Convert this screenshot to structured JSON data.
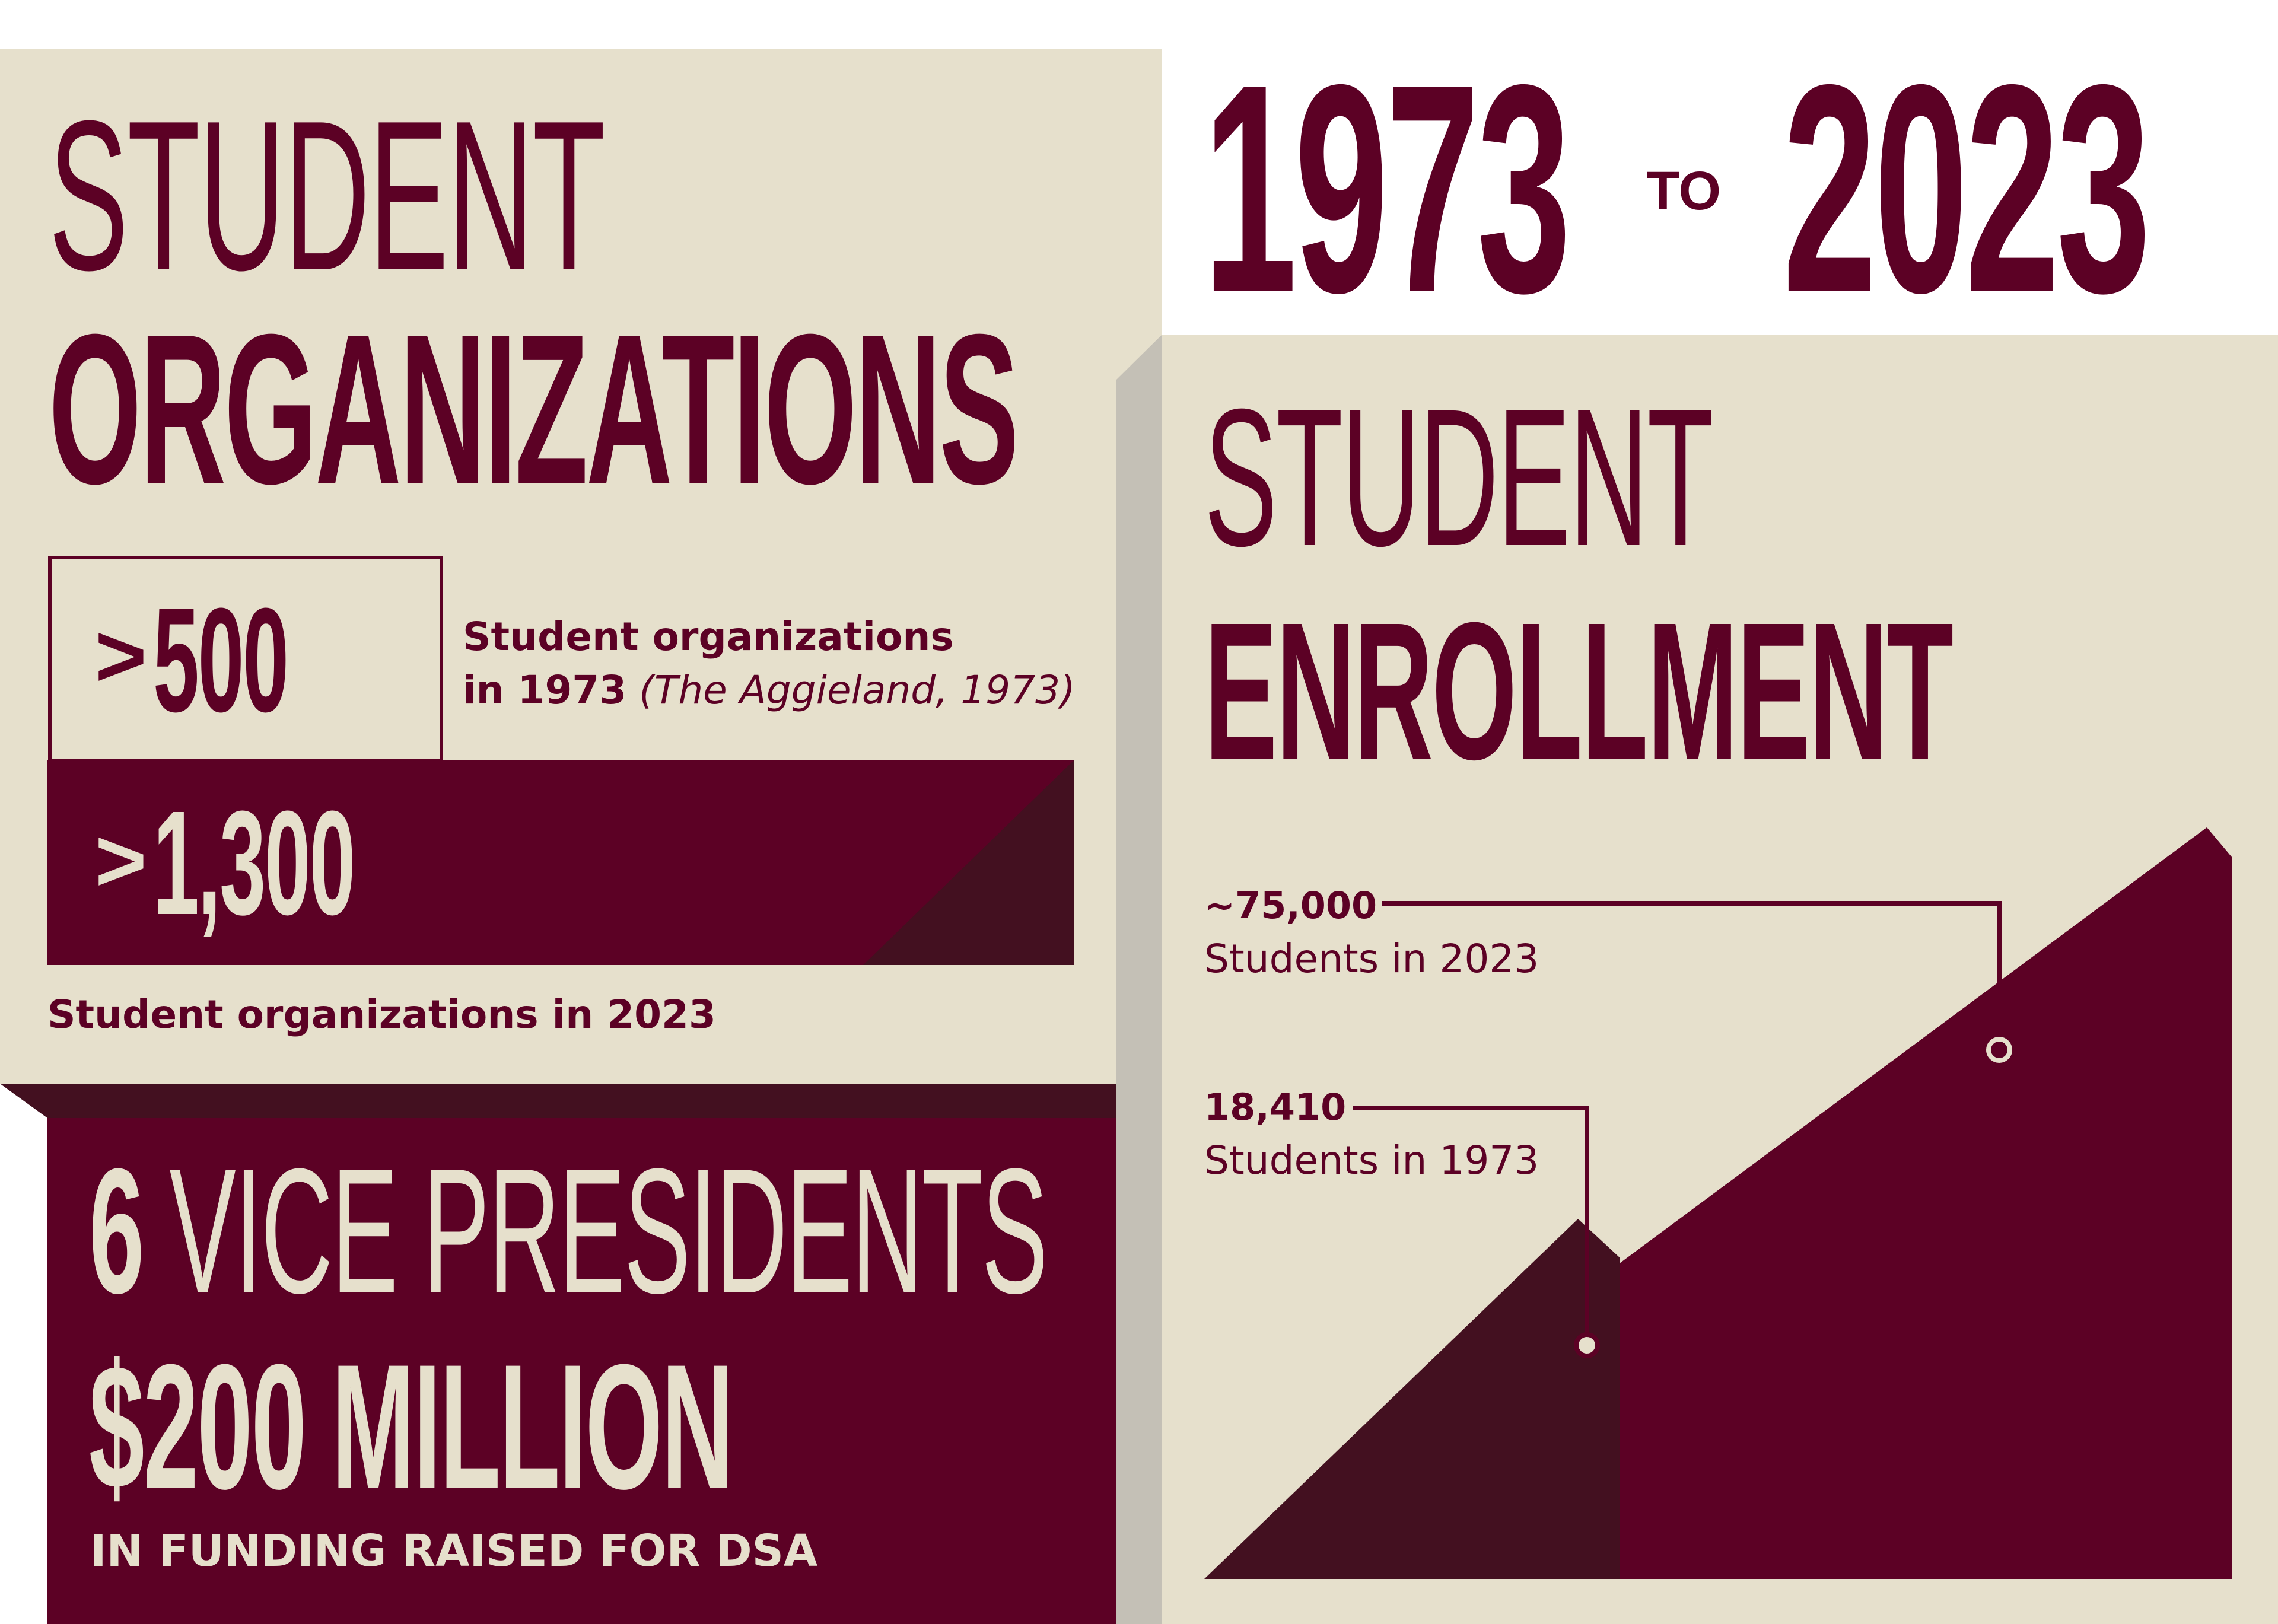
{
  "colors": {
    "maroon": "#5c0125",
    "dark_maroon": "#431020",
    "cream": "#e6e0cc",
    "gray_shadow": "#c4c0b6",
    "white": "#ffffff"
  },
  "header": {
    "year_start": "1973",
    "connector": "TO",
    "year_end": "2023"
  },
  "organizations": {
    "title_line1": "STUDENT",
    "title_line2": "ORGANIZATIONS",
    "stat_1973": {
      "prefix": ">",
      "value": "500",
      "caption_bold_1": "Student organizations",
      "caption_bold_2": "in 1973",
      "caption_italic": "(The Aggieland, 1973)"
    },
    "stat_2023": {
      "prefix": ">",
      "value": "1,300",
      "caption": "Student organizations in 2023"
    }
  },
  "leadership": {
    "vp_count": "6",
    "vp_label": "VICE PRESIDENTS",
    "funding_amount": "$200 MILLION",
    "funding_caption": "IN FUNDING RAISED FOR DSA"
  },
  "enrollment": {
    "title_line1": "STUDENT",
    "title_line2": "ENROLLMENT",
    "stat_2023": {
      "value": "~75,000",
      "label": "Students in 2023",
      "amount": 75000
    },
    "stat_1973": {
      "value": "18,410",
      "label": "Students in 1973",
      "amount": 18410
    }
  }
}
